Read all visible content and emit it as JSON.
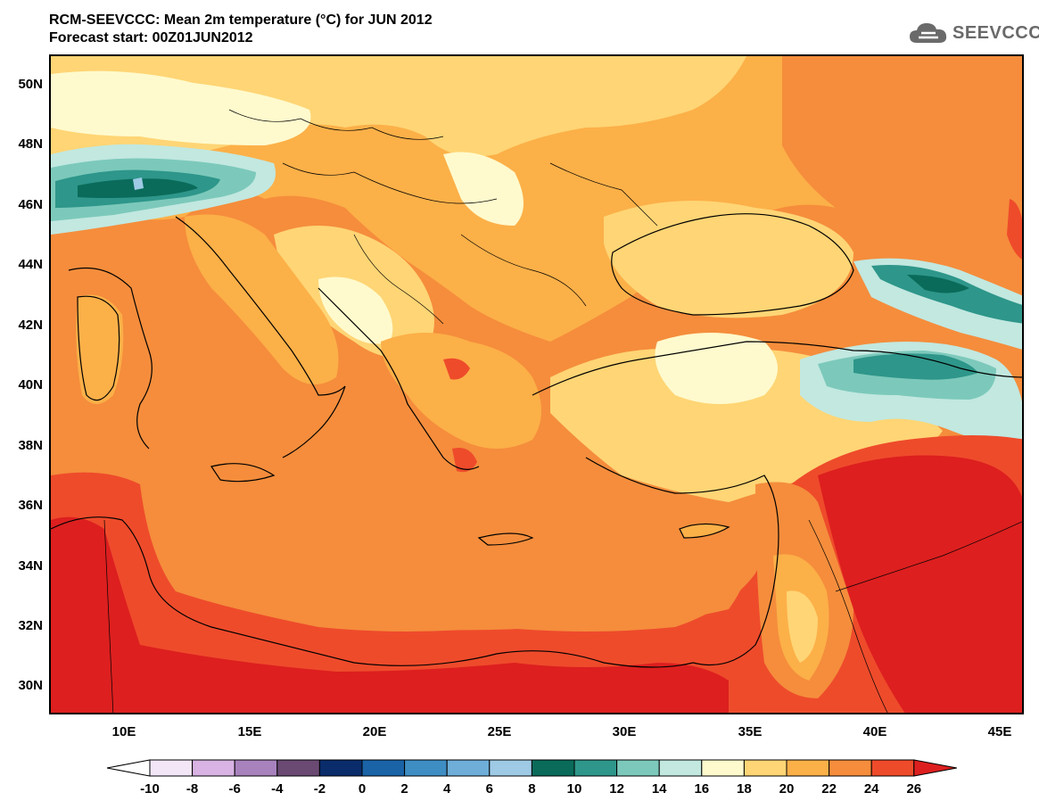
{
  "title": {
    "line1": "RCM-SEEVCCC: Mean 2m temperature (°C) for JUN 2012",
    "line2": "Forecast start: 00Z01JUN2012"
  },
  "logo": {
    "text": "SEEVCCC",
    "icon": "cloud-icon"
  },
  "map": {
    "variable": "Mean 2m temperature",
    "units": "°C",
    "lon_range": [
      7,
      46
    ],
    "lat_range": [
      29,
      51
    ],
    "lat_labels": [
      "50N",
      "48N",
      "46N",
      "44N",
      "42N",
      "40N",
      "38N",
      "36N",
      "34N",
      "32N",
      "30N"
    ],
    "lon_labels": [
      "10E",
      "15E",
      "20E",
      "25E",
      "30E",
      "35E",
      "40E",
      "45E"
    ]
  },
  "colorbar": {
    "labels": [
      "-10",
      "-8",
      "-6",
      "-4",
      "-2",
      "0",
      "2",
      "4",
      "6",
      "8",
      "10",
      "12",
      "14",
      "16",
      "18",
      "20",
      "22",
      "24",
      "26"
    ],
    "colors": [
      "#ffffff",
      "#f2e6f7",
      "#d8b3e3",
      "#a882bd",
      "#6a4a73",
      "#0a2c6b",
      "#1a63a6",
      "#3e8ec4",
      "#6eaed8",
      "#9ecae6",
      "#0a6b5a",
      "#2e968a",
      "#7cc9bb",
      "#c2e8e0",
      "#fffacd",
      "#ffd575",
      "#fcb048",
      "#f58d3c",
      "#ee4b2b",
      "#dd1f1f"
    ]
  }
}
